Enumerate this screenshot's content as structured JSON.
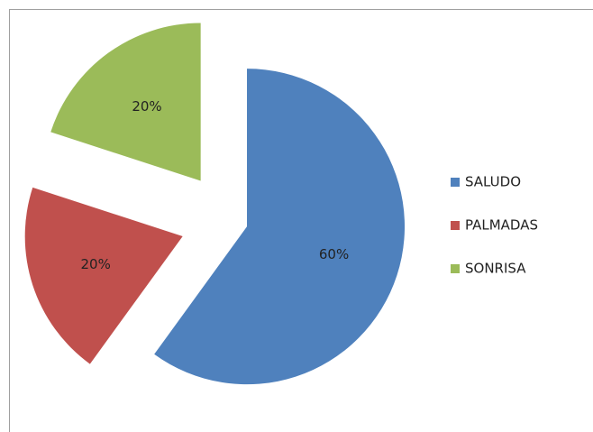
{
  "chart_data": {
    "type": "pie",
    "categories": [
      "SALUDO",
      "PALMADAS",
      "SONRISA"
    ],
    "values": [
      60,
      20,
      20
    ],
    "value_labels": [
      "60%",
      "20%",
      "20%"
    ],
    "colors": [
      "#4f81bd",
      "#c0504d",
      "#9bbb59"
    ],
    "legend": "right"
  }
}
